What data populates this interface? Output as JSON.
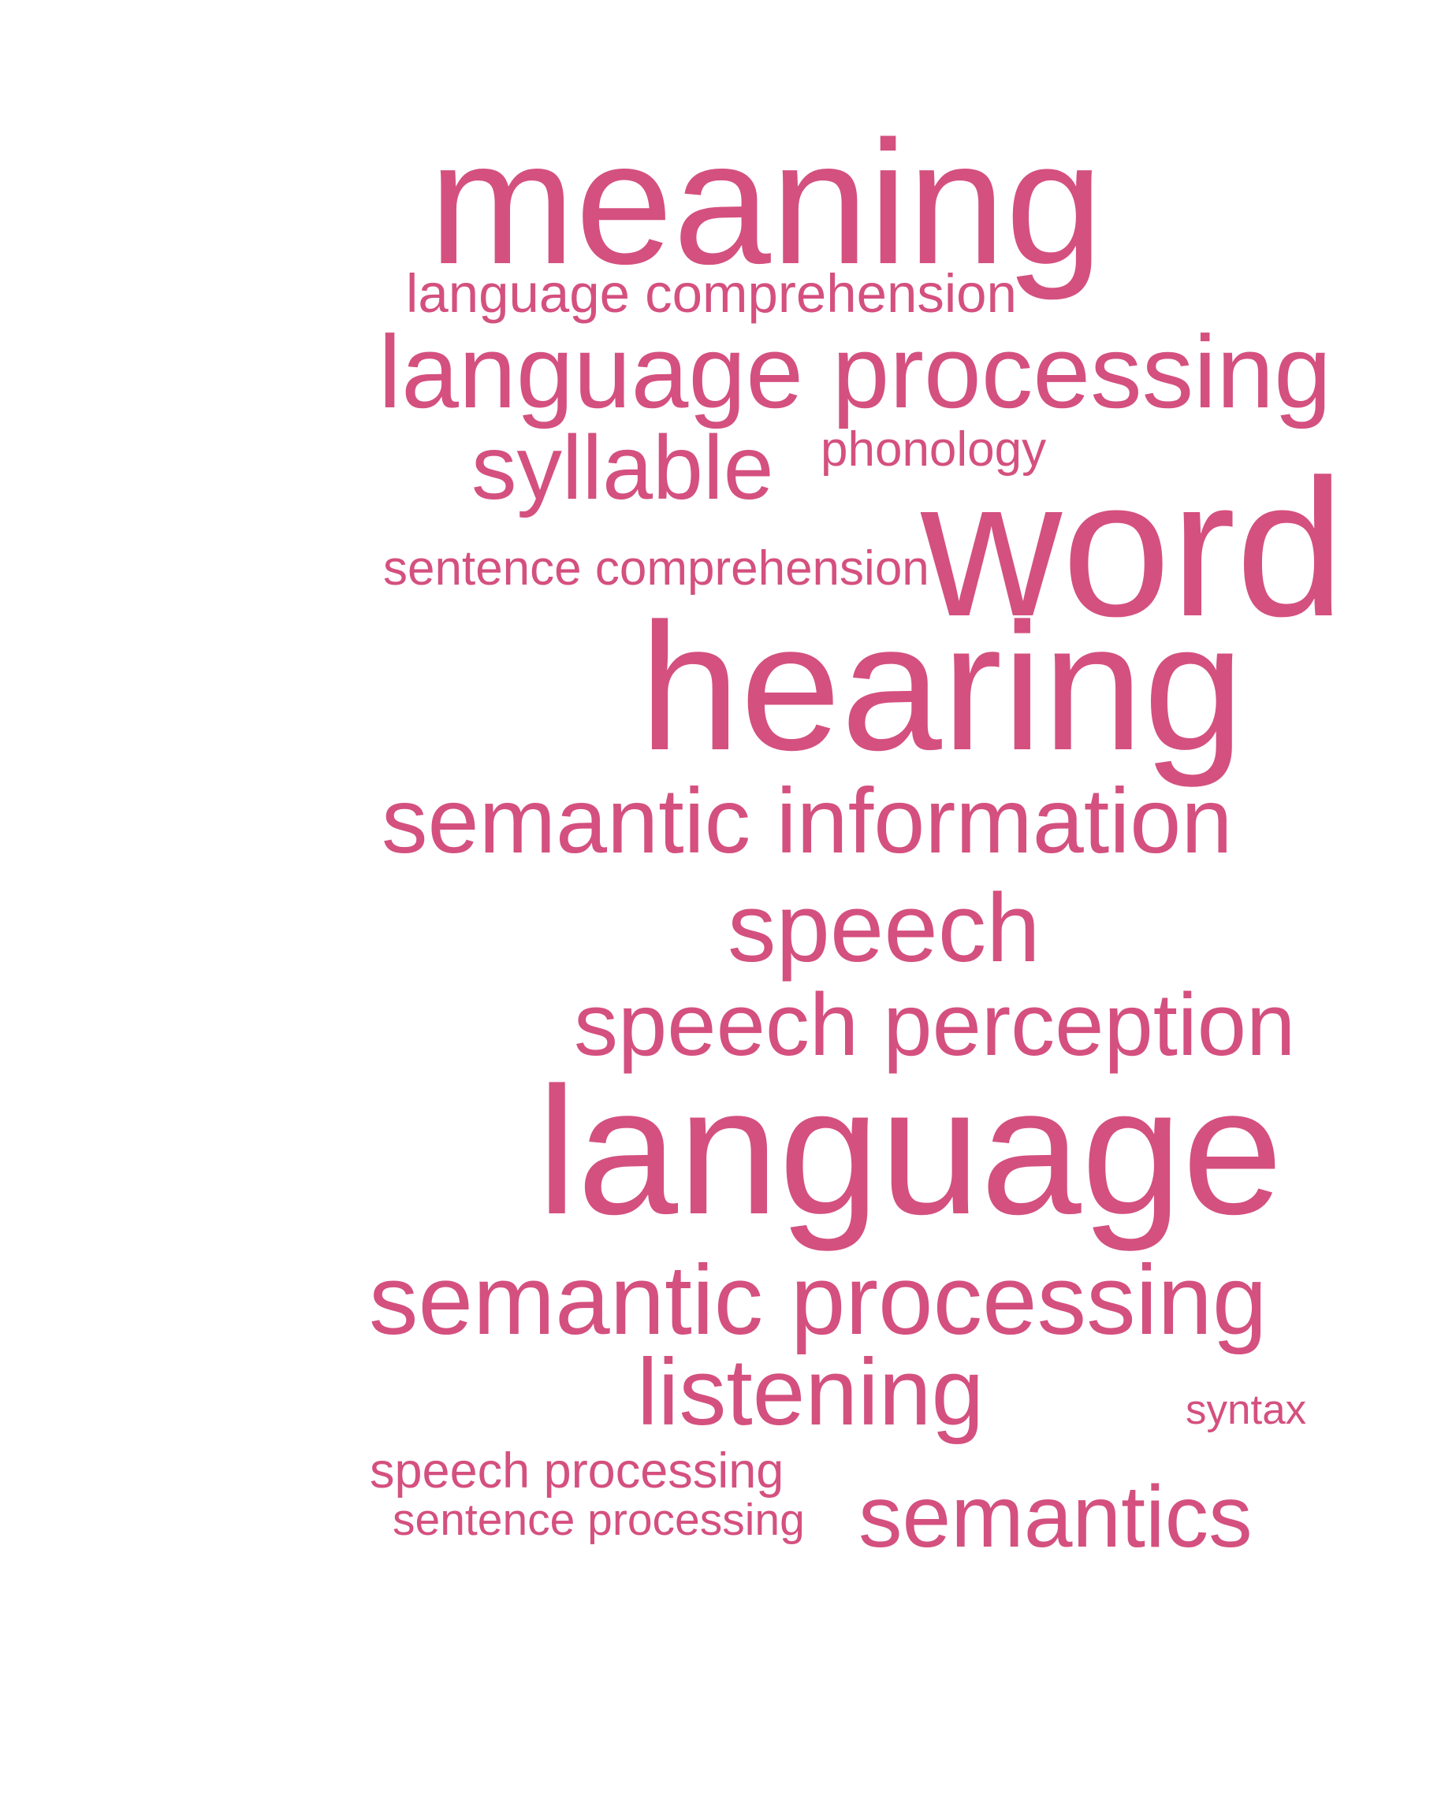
{
  "cloud": {
    "color": "#d4507f",
    "words": [
      "meaning",
      "language comprehension",
      "language processing",
      "syllable",
      "phonology",
      "sentence comprehension",
      "word",
      "hearing",
      "semantic information",
      "speech",
      "speech perception",
      "language",
      "semantic processing",
      "listening",
      "syntax",
      "speech processing",
      "sentence processing",
      "semantics"
    ]
  }
}
